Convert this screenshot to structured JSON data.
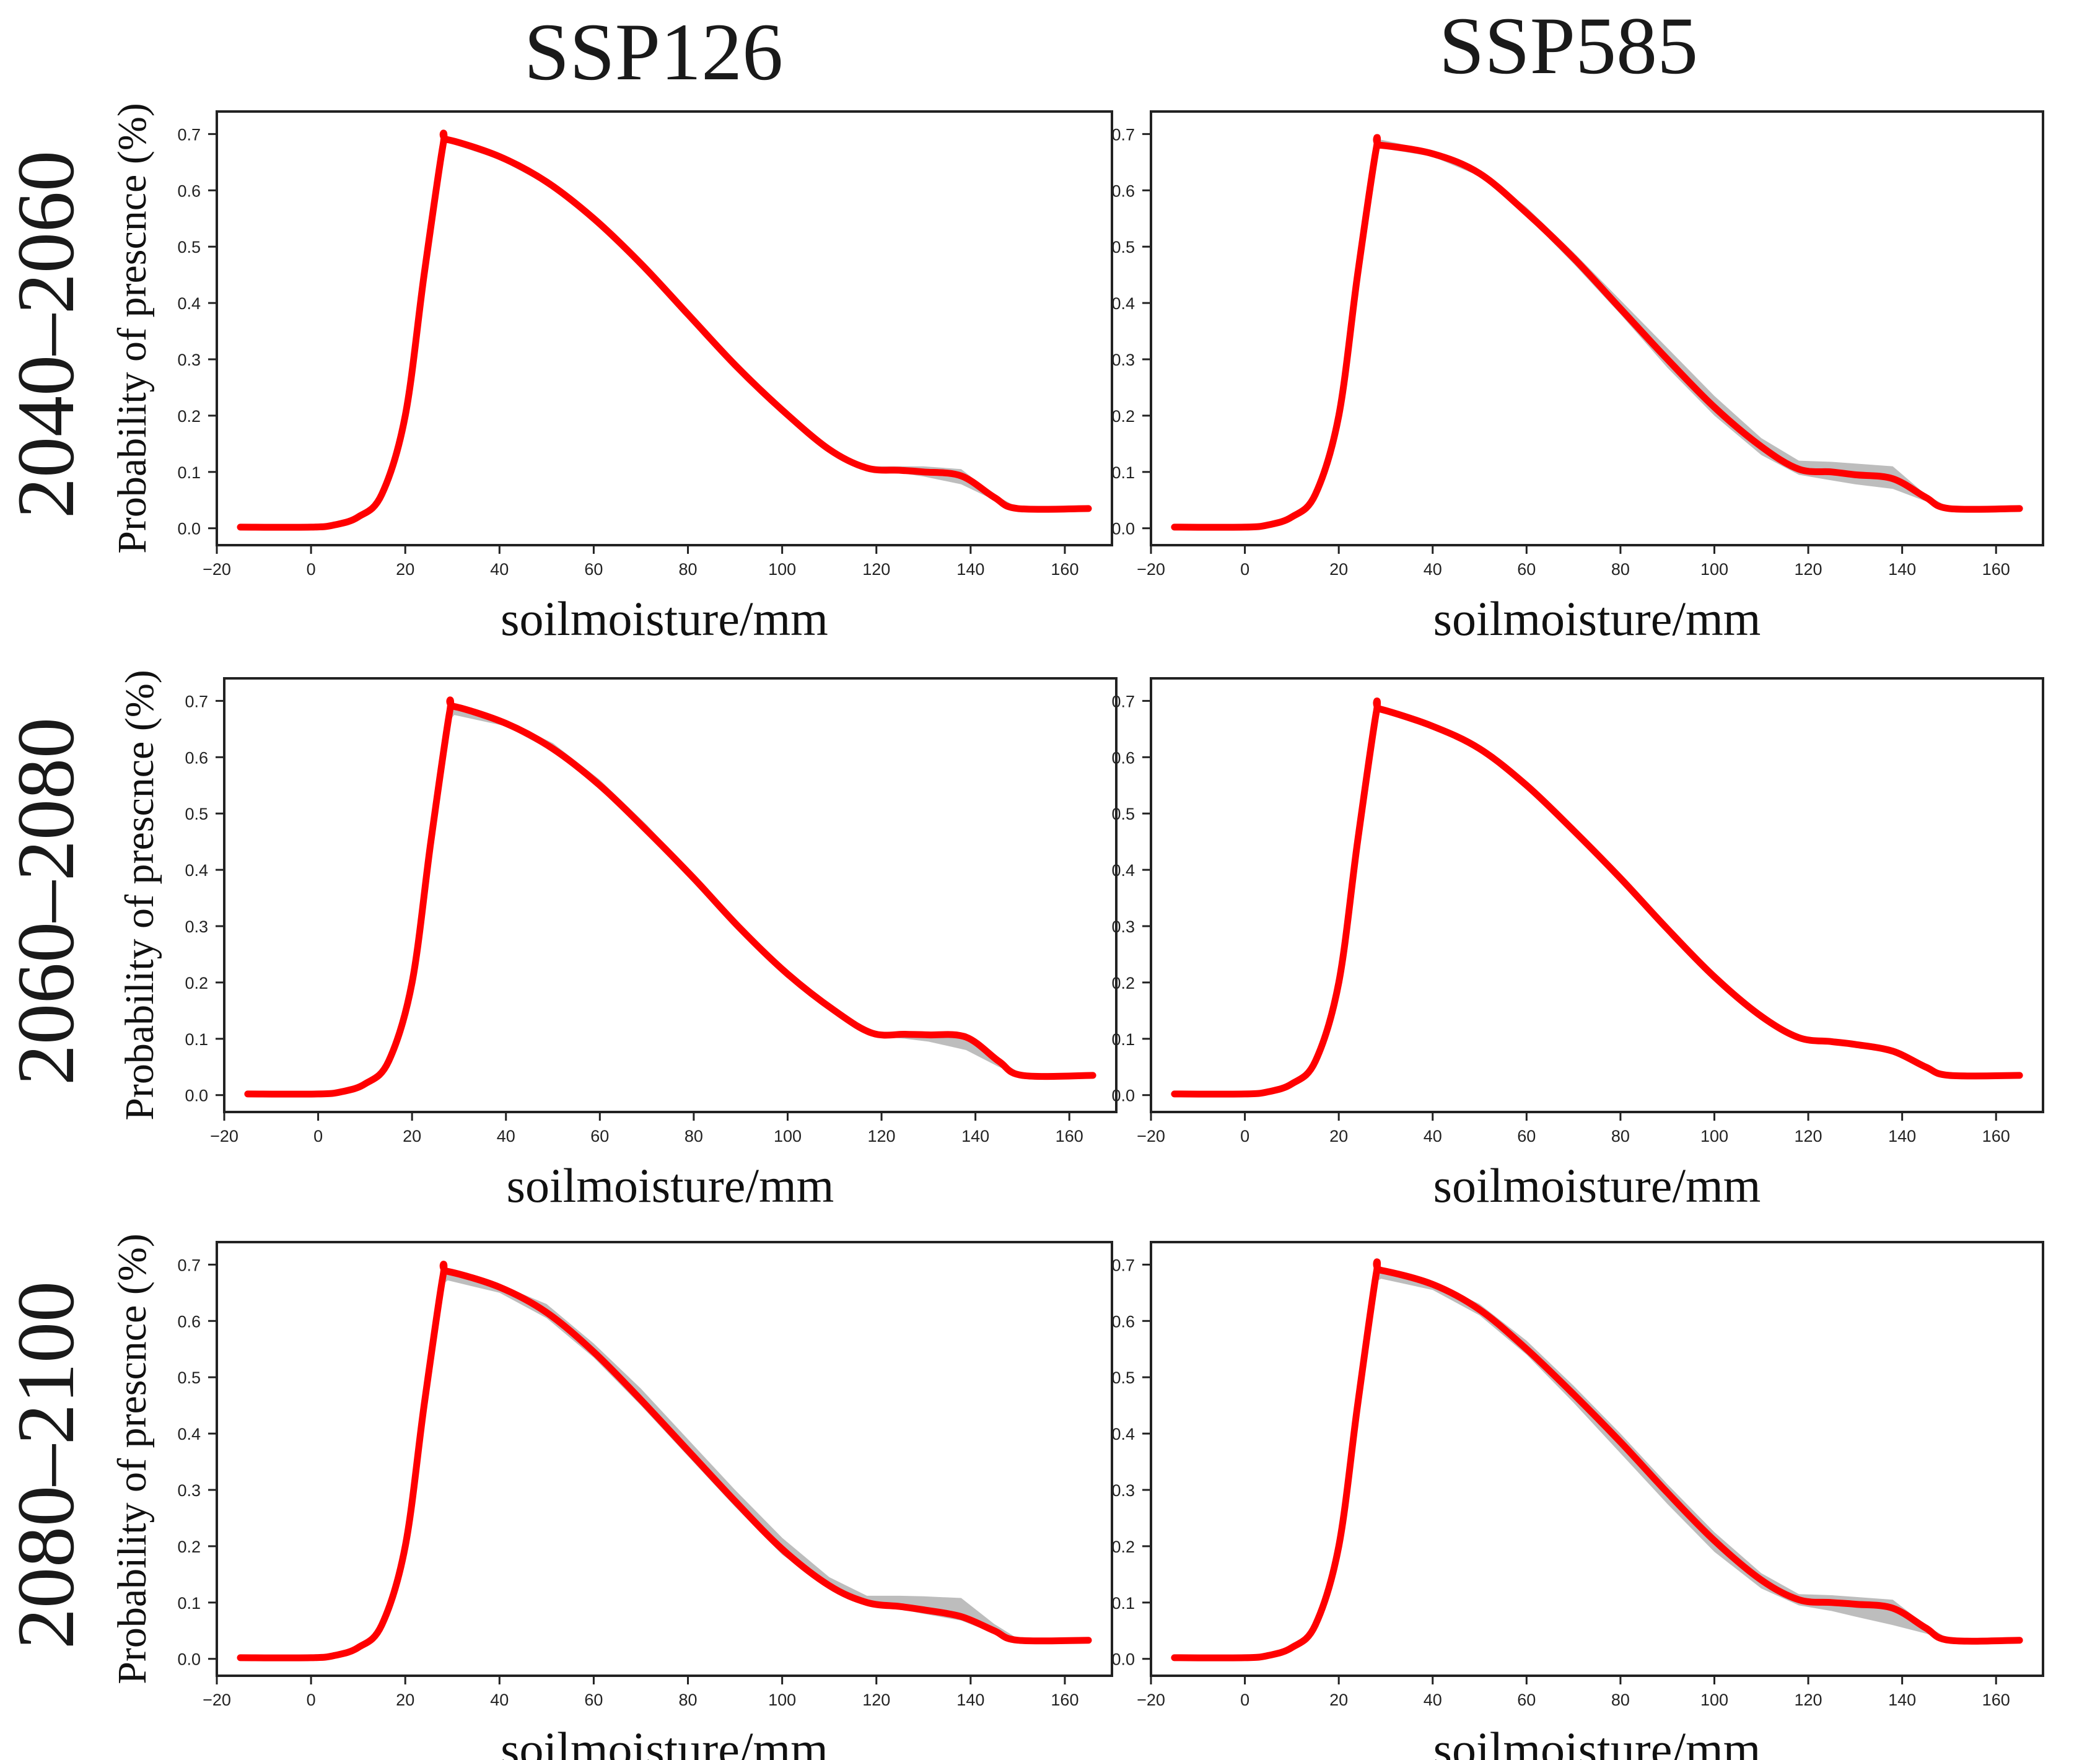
{
  "figure": {
    "column_titles": [
      "SSP126",
      "SSP585"
    ],
    "row_titles": [
      "2040–2060",
      "2060–2080",
      "2080–2100"
    ]
  },
  "chart_data": [
    {
      "type": "line",
      "scenario": "SSP126",
      "period": "2040–2060",
      "xlabel": "soilmoisture/mm",
      "ylabel": "Probability of prescnce (%)",
      "xlim": [
        -20,
        170
      ],
      "ylim": [
        -0.03,
        0.74
      ],
      "xticks": [
        -20,
        0,
        20,
        40,
        60,
        80,
        100,
        120,
        140,
        160
      ],
      "yticks": [
        0.0,
        0.1,
        0.2,
        0.3,
        0.4,
        0.5,
        0.6,
        0.7
      ],
      "x": [
        -15,
        0,
        5,
        10,
        15,
        20,
        24,
        28,
        29,
        40,
        50,
        60,
        70,
        80,
        90,
        100,
        110,
        118,
        125,
        130,
        138,
        145,
        150,
        165
      ],
      "y": [
        0.002,
        0.002,
        0.006,
        0.02,
        0.06,
        0.2,
        0.45,
        0.68,
        0.69,
        0.66,
        0.615,
        0.55,
        0.47,
        0.38,
        0.29,
        0.21,
        0.14,
        0.107,
        0.103,
        0.1,
        0.093,
        0.055,
        0.035,
        0.035
      ],
      "band_upper": [
        0.002,
        0.002,
        0.006,
        0.02,
        0.06,
        0.2,
        0.45,
        0.68,
        0.69,
        0.66,
        0.615,
        0.55,
        0.47,
        0.38,
        0.29,
        0.21,
        0.14,
        0.11,
        0.11,
        0.11,
        0.105,
        0.06,
        0.037,
        0.037
      ],
      "band_lower": [
        0.002,
        0.002,
        0.006,
        0.02,
        0.06,
        0.2,
        0.45,
        0.675,
        0.685,
        0.655,
        0.61,
        0.545,
        0.465,
        0.375,
        0.285,
        0.205,
        0.135,
        0.103,
        0.098,
        0.092,
        0.078,
        0.05,
        0.033,
        0.033
      ]
    },
    {
      "type": "line",
      "scenario": "SSP585",
      "period": "2040–2060",
      "xlabel": "soilmoisture/mm",
      "ylabel": "",
      "xlim": [
        -20,
        170
      ],
      "ylim": [
        -0.03,
        0.74
      ],
      "xticks": [
        -20,
        0,
        20,
        40,
        60,
        80,
        100,
        120,
        140,
        160
      ],
      "yticks": [
        0.0,
        0.1,
        0.2,
        0.3,
        0.4,
        0.5,
        0.6,
        0.7
      ],
      "x": [
        -15,
        0,
        5,
        10,
        15,
        20,
        24,
        28,
        29,
        40,
        50,
        60,
        70,
        80,
        90,
        100,
        110,
        118,
        125,
        130,
        138,
        145,
        150,
        165
      ],
      "y": [
        0.002,
        0.002,
        0.006,
        0.02,
        0.06,
        0.2,
        0.45,
        0.675,
        0.68,
        0.665,
        0.63,
        0.56,
        0.48,
        0.39,
        0.3,
        0.215,
        0.145,
        0.105,
        0.1,
        0.095,
        0.088,
        0.055,
        0.035,
        0.035
      ],
      "band_upper": [
        0.002,
        0.002,
        0.006,
        0.02,
        0.06,
        0.2,
        0.45,
        0.685,
        0.69,
        0.67,
        0.635,
        0.57,
        0.49,
        0.405,
        0.32,
        0.235,
        0.16,
        0.12,
        0.118,
        0.115,
        0.11,
        0.06,
        0.037,
        0.037
      ],
      "band_lower": [
        0.002,
        0.002,
        0.006,
        0.02,
        0.06,
        0.2,
        0.45,
        0.67,
        0.675,
        0.66,
        0.625,
        0.555,
        0.47,
        0.38,
        0.285,
        0.2,
        0.13,
        0.095,
        0.085,
        0.078,
        0.07,
        0.048,
        0.033,
        0.033
      ]
    },
    {
      "type": "line",
      "scenario": "SSP126",
      "period": "2060–2080",
      "xlabel": "soilmoisture/mm",
      "ylabel": "Probability of prescnce (%)",
      "xlim": [
        -20,
        170
      ],
      "ylim": [
        -0.03,
        0.74
      ],
      "xticks": [
        -20,
        0,
        20,
        40,
        60,
        80,
        100,
        120,
        140,
        160
      ],
      "yticks": [
        0.0,
        0.1,
        0.2,
        0.3,
        0.4,
        0.5,
        0.6,
        0.7
      ],
      "x": [
        -15,
        0,
        5,
        10,
        15,
        20,
        24,
        28,
        29,
        40,
        50,
        60,
        70,
        80,
        90,
        100,
        110,
        118,
        125,
        130,
        138,
        145,
        150,
        165
      ],
      "y": [
        0.002,
        0.002,
        0.006,
        0.02,
        0.06,
        0.2,
        0.45,
        0.68,
        0.69,
        0.66,
        0.615,
        0.55,
        0.47,
        0.385,
        0.295,
        0.215,
        0.15,
        0.11,
        0.108,
        0.107,
        0.103,
        0.06,
        0.035,
        0.035
      ],
      "band_upper": [
        0.002,
        0.002,
        0.006,
        0.02,
        0.06,
        0.2,
        0.45,
        0.685,
        0.69,
        0.665,
        0.625,
        0.56,
        0.48,
        0.39,
        0.3,
        0.22,
        0.152,
        0.112,
        0.112,
        0.111,
        0.11,
        0.062,
        0.037,
        0.037
      ],
      "band_lower": [
        0.002,
        0.002,
        0.006,
        0.02,
        0.06,
        0.2,
        0.45,
        0.665,
        0.675,
        0.655,
        0.61,
        0.545,
        0.465,
        0.38,
        0.29,
        0.21,
        0.145,
        0.105,
        0.1,
        0.095,
        0.08,
        0.05,
        0.033,
        0.033
      ]
    },
    {
      "type": "line",
      "scenario": "SSP585",
      "period": "2060–2080",
      "xlabel": "soilmoisture/mm",
      "ylabel": "",
      "xlim": [
        -20,
        170
      ],
      "ylim": [
        -0.03,
        0.74
      ],
      "xticks": [
        -20,
        0,
        20,
        40,
        60,
        80,
        100,
        120,
        140,
        160
      ],
      "yticks": [
        0.0,
        0.1,
        0.2,
        0.3,
        0.4,
        0.5,
        0.6,
        0.7
      ],
      "x": [
        -15,
        0,
        5,
        10,
        15,
        20,
        24,
        28,
        29,
        40,
        50,
        60,
        70,
        80,
        90,
        100,
        110,
        118,
        125,
        130,
        138,
        145,
        150,
        165
      ],
      "y": [
        0.002,
        0.002,
        0.006,
        0.02,
        0.06,
        0.2,
        0.45,
        0.68,
        0.685,
        0.655,
        0.615,
        0.55,
        0.47,
        0.385,
        0.295,
        0.21,
        0.14,
        0.102,
        0.095,
        0.09,
        0.078,
        0.05,
        0.035,
        0.035
      ],
      "band_upper": [
        0.002,
        0.002,
        0.006,
        0.02,
        0.06,
        0.2,
        0.45,
        0.683,
        0.688,
        0.658,
        0.618,
        0.553,
        0.473,
        0.388,
        0.298,
        0.213,
        0.143,
        0.105,
        0.098,
        0.093,
        0.081,
        0.052,
        0.036,
        0.036
      ],
      "band_lower": [
        0.002,
        0.002,
        0.006,
        0.02,
        0.06,
        0.2,
        0.45,
        0.677,
        0.682,
        0.652,
        0.612,
        0.547,
        0.467,
        0.382,
        0.292,
        0.207,
        0.137,
        0.099,
        0.092,
        0.087,
        0.075,
        0.048,
        0.034,
        0.034
      ]
    },
    {
      "type": "line",
      "scenario": "SSP126",
      "period": "2080–2100",
      "xlabel": "soilmoisture/mm",
      "ylabel": "Probability of prescnce (%)",
      "xlim": [
        -20,
        170
      ],
      "ylim": [
        -0.03,
        0.74
      ],
      "xticks": [
        -20,
        0,
        20,
        40,
        60,
        80,
        100,
        120,
        140,
        160
      ],
      "yticks": [
        0.0,
        0.1,
        0.2,
        0.3,
        0.4,
        0.5,
        0.6,
        0.7
      ],
      "x": [
        -15,
        0,
        5,
        10,
        15,
        20,
        24,
        28,
        29,
        40,
        50,
        60,
        70,
        80,
        90,
        100,
        110,
        118,
        125,
        130,
        138,
        145,
        150,
        165
      ],
      "y": [
        0.002,
        0.002,
        0.006,
        0.02,
        0.06,
        0.2,
        0.45,
        0.68,
        0.688,
        0.66,
        0.615,
        0.545,
        0.46,
        0.37,
        0.28,
        0.195,
        0.13,
        0.1,
        0.093,
        0.087,
        0.075,
        0.05,
        0.033,
        0.033
      ],
      "band_upper": [
        0.002,
        0.002,
        0.006,
        0.02,
        0.06,
        0.2,
        0.45,
        0.685,
        0.69,
        0.665,
        0.63,
        0.56,
        0.48,
        0.39,
        0.3,
        0.215,
        0.145,
        0.112,
        0.112,
        0.111,
        0.108,
        0.062,
        0.036,
        0.036
      ],
      "band_lower": [
        0.002,
        0.002,
        0.006,
        0.02,
        0.06,
        0.2,
        0.45,
        0.665,
        0.672,
        0.65,
        0.605,
        0.535,
        0.45,
        0.36,
        0.27,
        0.185,
        0.125,
        0.097,
        0.088,
        0.08,
        0.068,
        0.045,
        0.031,
        0.031
      ]
    },
    {
      "type": "line",
      "scenario": "SSP585",
      "period": "2080–2100",
      "xlabel": "soilmoisture/mm",
      "ylabel": "",
      "xlim": [
        -20,
        170
      ],
      "ylim": [
        -0.03,
        0.74
      ],
      "xticks": [
        -20,
        0,
        20,
        40,
        60,
        80,
        100,
        120,
        140,
        160
      ],
      "yticks": [
        0.0,
        0.1,
        0.2,
        0.3,
        0.4,
        0.5,
        0.6,
        0.7
      ],
      "x": [
        -15,
        0,
        5,
        10,
        15,
        20,
        24,
        28,
        29,
        40,
        50,
        60,
        70,
        80,
        90,
        100,
        110,
        118,
        125,
        130,
        138,
        145,
        150,
        165
      ],
      "y": [
        0.002,
        0.002,
        0.006,
        0.02,
        0.06,
        0.2,
        0.45,
        0.685,
        0.69,
        0.665,
        0.62,
        0.55,
        0.47,
        0.385,
        0.295,
        0.21,
        0.14,
        0.105,
        0.1,
        0.097,
        0.09,
        0.055,
        0.033,
        0.033
      ],
      "band_upper": [
        0.002,
        0.002,
        0.006,
        0.02,
        0.06,
        0.2,
        0.45,
        0.69,
        0.695,
        0.67,
        0.63,
        0.565,
        0.485,
        0.4,
        0.31,
        0.225,
        0.152,
        0.115,
        0.113,
        0.11,
        0.105,
        0.06,
        0.035,
        0.035
      ],
      "band_lower": [
        0.002,
        0.002,
        0.006,
        0.02,
        0.06,
        0.2,
        0.45,
        0.67,
        0.675,
        0.655,
        0.61,
        0.54,
        0.455,
        0.365,
        0.275,
        0.19,
        0.125,
        0.095,
        0.085,
        0.075,
        0.06,
        0.045,
        0.031,
        0.031
      ]
    }
  ]
}
